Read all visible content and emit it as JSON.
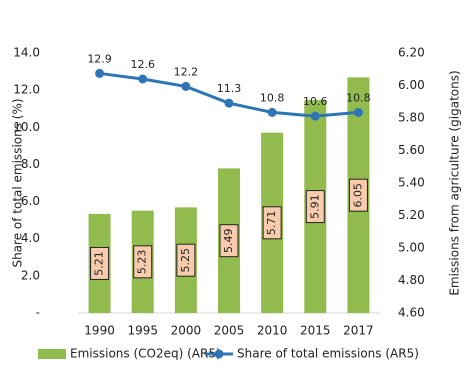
{
  "chart_data": {
    "type": "bar-line",
    "categories": [
      "1990",
      "1995",
      "2000",
      "2005",
      "2010",
      "2015",
      "2017"
    ],
    "y_label": "Share of total emissions (%)",
    "y2_label": "Emissions from agriculture (gigatons)",
    "series": [
      {
        "name": "Emissions (CO2eq) (AR5)",
        "type": "bar",
        "axis": "y2",
        "color": "#92bb4e",
        "label_color": "#f8cbad",
        "values": [
          5.21,
          5.23,
          5.25,
          5.49,
          5.71,
          5.91,
          6.05
        ]
      },
      {
        "name": "Share of total emissions (AR5)",
        "type": "line",
        "axis": "y",
        "color": "#2e75b6",
        "values": [
          12.9,
          12.6,
          12.2,
          11.3,
          10.8,
          10.6,
          10.8
        ]
      }
    ],
    "ylim": [
      0,
      14
    ],
    "yticks": [
      {
        "value": 0,
        "label": "-"
      },
      {
        "value": 2,
        "label": "2.0"
      },
      {
        "value": 4,
        "label": "4.0"
      },
      {
        "value": 6,
        "label": "6.0"
      },
      {
        "value": 8,
        "label": "8.0"
      },
      {
        "value": 10,
        "label": "10.0"
      },
      {
        "value": 12,
        "label": "12.0"
      },
      {
        "value": 14,
        "label": "14.0"
      }
    ],
    "y2lim": [
      4.6,
      6.2
    ],
    "y2ticks": [
      {
        "value": 4.6,
        "label": "4.60"
      },
      {
        "value": 4.8,
        "label": "4.80"
      },
      {
        "value": 5.0,
        "label": "5.00"
      },
      {
        "value": 5.2,
        "label": "5.20"
      },
      {
        "value": 5.4,
        "label": "5.40"
      },
      {
        "value": 5.6,
        "label": "5.60"
      },
      {
        "value": 5.8,
        "label": "5.80"
      },
      {
        "value": 6.0,
        "label": "6.00"
      },
      {
        "value": 6.2,
        "label": "6.20"
      }
    ],
    "legend": "bottom"
  }
}
